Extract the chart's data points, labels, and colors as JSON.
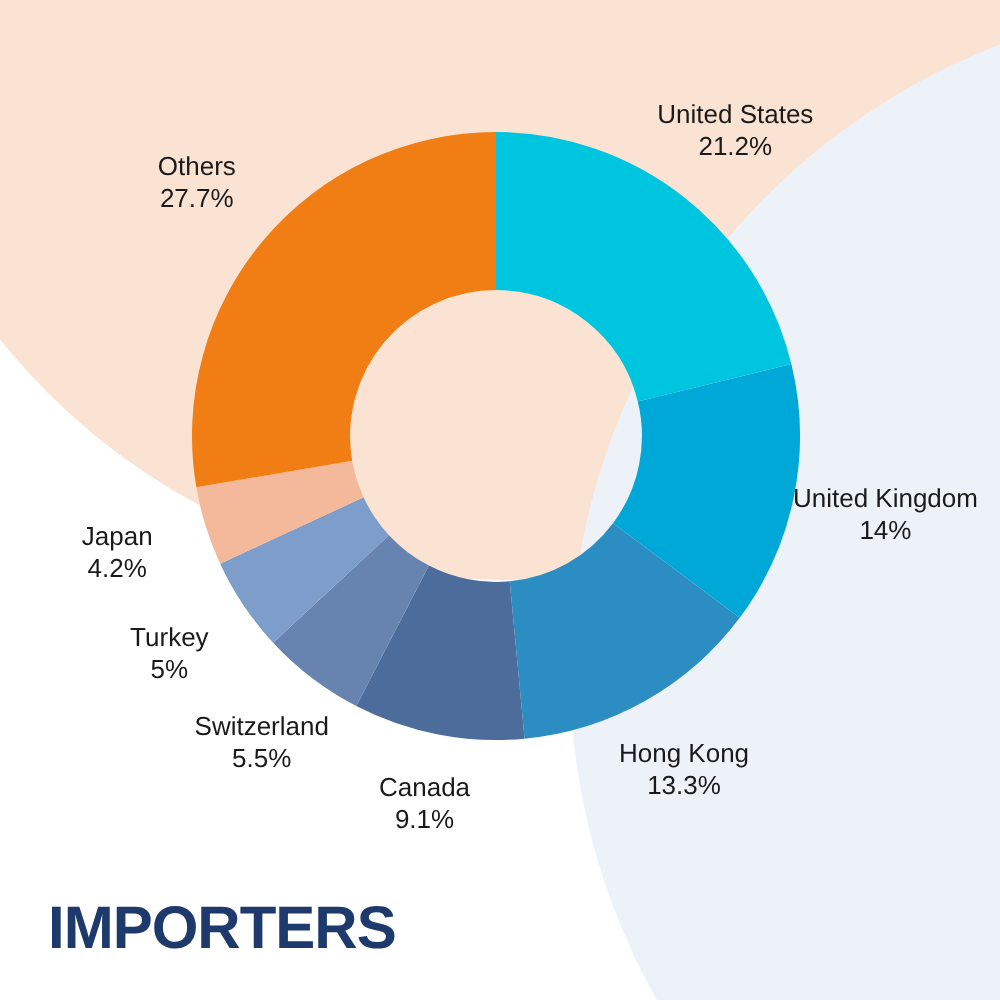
{
  "chart_data": {
    "type": "donut",
    "title": "IMPORTERS",
    "categories": [
      "United States",
      "United Kingdom",
      "Hong Kong",
      "Canada",
      "Switzerland",
      "Turkey",
      "Japan",
      "Others"
    ],
    "values": [
      21.2,
      14,
      13.3,
      9.1,
      5.5,
      5,
      4.2,
      27.7
    ],
    "value_labels": [
      "21.2%",
      "14%",
      "13.3%",
      "9.1%",
      "5.5%",
      "5%",
      "4.2%",
      "27.7%"
    ],
    "colors": [
      "#00c5df",
      "#00a8d7",
      "#2b8dc1",
      "#4c6c9c",
      "#6783b0",
      "#7d9dca",
      "#f4b99b",
      "#f07e14"
    ],
    "legend": false
  }
}
